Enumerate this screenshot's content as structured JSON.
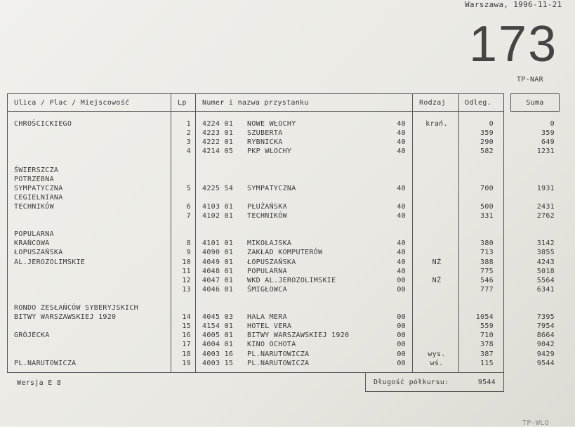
{
  "header": {
    "place_date": "Warszawa, 1996-11-21",
    "route": "173",
    "code": "TP-NAR"
  },
  "table": {
    "columns": {
      "street": "Ulica / Plac / Miejscowość",
      "lp": "Lp",
      "stop": "Numer  i nazwa przystanku",
      "type": "Rodzaj",
      "distance": "Odleg.",
      "sum": "Suma"
    },
    "lines": [
      {
        "street": "CHROŚCICKIEGO",
        "lp": 1,
        "number": "4224 01",
        "name": "NOWE WŁOCHY",
        "zone": "40",
        "type": "krań.",
        "distance": 0,
        "sum": 0
      },
      {
        "lp": 2,
        "number": "4223 01",
        "name": "SZUBERTA",
        "zone": "40",
        "distance": 359,
        "sum": 359
      },
      {
        "lp": 3,
        "number": "4222 01",
        "name": "RYBNICKA",
        "zone": "40",
        "distance": 290,
        "sum": 649
      },
      {
        "lp": 4,
        "number": "4214 05",
        "name": "PKP WŁOCHY",
        "zone": "40",
        "distance": 582,
        "sum": 1231
      },
      {},
      {
        "street": "ŚWIERSZCZA"
      },
      {
        "street": "POTRZEBNA"
      },
      {
        "street": "SYMPATYCZNA",
        "lp": 5,
        "number": "4225 54",
        "name": "SYMPATYCZNA",
        "zone": "40",
        "distance": 700,
        "sum": 1931
      },
      {
        "street": "CEGIELNIANA"
      },
      {
        "street": "TECHNIKÓW",
        "lp": 6,
        "number": "4103 01",
        "name": "PŁUŻAŃSKA",
        "zone": "40",
        "distance": 500,
        "sum": 2431
      },
      {
        "lp": 7,
        "number": "4102 01",
        "name": "TECHNIKÓW",
        "zone": "40",
        "distance": 331,
        "sum": 2762
      },
      {},
      {
        "street": "POPULARNA"
      },
      {
        "street": "KRAŃCOWA",
        "lp": 8,
        "number": "4101 01",
        "name": "MIKOŁAJSKA",
        "zone": "40",
        "distance": 380,
        "sum": 3142
      },
      {
        "street": "ŁOPUSZAŃSKA",
        "lp": 9,
        "number": "4090 01",
        "name": "ZAKŁAD KOMPUTERÓW",
        "zone": "40",
        "distance": 713,
        "sum": 3855
      },
      {
        "street": "AL.JEROZOLIMSKIE",
        "lp": 10,
        "number": "4049 01",
        "name": "ŁOPUSZAŃSKA",
        "zone": "40",
        "type": "NŻ",
        "distance": 388,
        "sum": 4243
      },
      {
        "lp": 11,
        "number": "4048 01",
        "name": "POPULARNA",
        "zone": "40",
        "distance": 775,
        "sum": 5018
      },
      {
        "lp": 12,
        "number": "4047 01",
        "name": "WKD AL.JEROZOLIMSKIE",
        "zone": "00",
        "type": "NŻ",
        "distance": 546,
        "sum": 5564
      },
      {
        "lp": 13,
        "number": "4046 01",
        "name": "ŚMIGŁOWCA",
        "zone": "00",
        "distance": 777,
        "sum": 6341
      },
      {},
      {
        "street": "RONDO ZESŁAŃCÓW SYBERYJSKICH"
      },
      {
        "street": "BITWY WARSZAWSKIEJ 1920",
        "lp": 14,
        "number": "4045 03",
        "name": "HALA MERA",
        "zone": "00",
        "distance": 1054,
        "sum": 7395
      },
      {
        "lp": 15,
        "number": "4154 01",
        "name": "HOTEL VERA",
        "zone": "00",
        "distance": 559,
        "sum": 7954
      },
      {
        "street": "GRÓJECKA",
        "lp": 16,
        "number": "4005 01",
        "name": "BITWY WARSZAWSKIEJ 1920",
        "zone": "00",
        "distance": 710,
        "sum": 8664
      },
      {
        "lp": 17,
        "number": "4004 01",
        "name": "KINO OCHOTA",
        "zone": "00",
        "distance": 378,
        "sum": 9042
      },
      {
        "lp": 18,
        "number": "4003 16",
        "name": "PL.NARUTOWICZA",
        "zone": "00",
        "type": "wys.",
        "distance": 387,
        "sum": 9429
      },
      {
        "street": "PL.NARUTOWICZA",
        "lp": 19,
        "number": "4003 15",
        "name": "PL.NARUTOWICZA",
        "zone": "00",
        "type": "wś.",
        "distance": 115,
        "sum": 9544
      }
    ]
  },
  "footer": {
    "version": "Wersja  E 8",
    "length_label": "Długość półkursu:",
    "length_value": 9544,
    "corner_code": "TP-WLO"
  }
}
